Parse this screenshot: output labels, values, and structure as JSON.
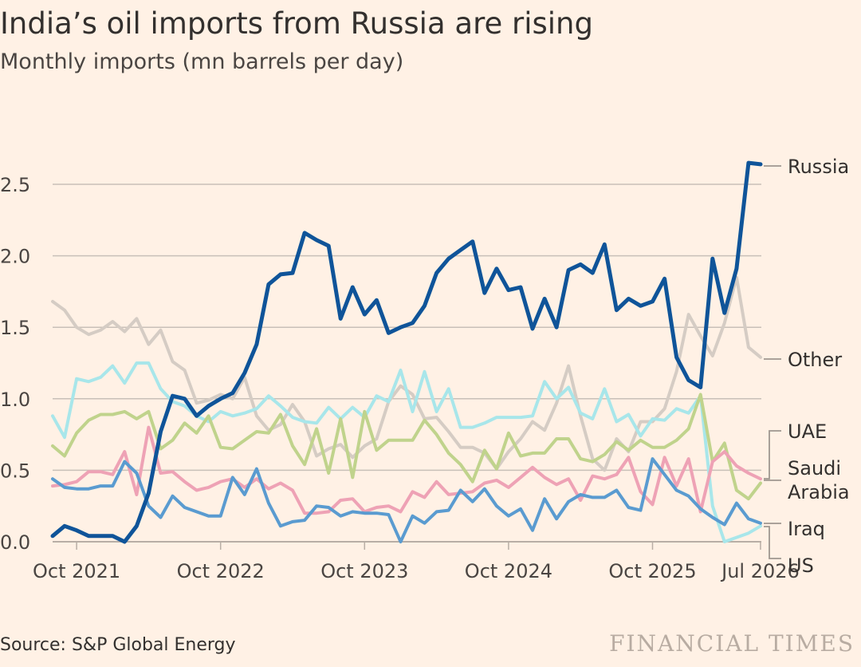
{
  "header": {
    "title": "India’s oil imports from Russia are rising",
    "subtitle": "Monthly imports (mn barrels per day)"
  },
  "footer": {
    "source": "Source: S&P Global Energy",
    "brand": "FINANCIAL TIMES"
  },
  "colors": {
    "background": "#fff1e5",
    "gridline": "#c8c0b8",
    "Russia": "#0f5499",
    "Other": "#d5ccc4",
    "UAE": "#c0d38c",
    "Saudi Arabia": "#eea2b5",
    "Iraq": "#5a9bd0",
    "US": "#a8e6ea"
  },
  "chart_data": {
    "type": "line",
    "title": "India’s oil imports from Russia are rising",
    "subtitle": "Monthly imports (mn barrels per day)",
    "ylim": [
      0,
      2.8
    ],
    "yticks": [
      0.0,
      0.5,
      1.0,
      1.5,
      2.0,
      2.5
    ],
    "ytick_labels": [
      "0.0",
      "0.5",
      "1.0",
      "1.5",
      "2.0",
      "2.5"
    ],
    "xticks": [
      {
        "label": "Oct 2021",
        "index": 2
      },
      {
        "label": "Oct 2022",
        "index": 14
      },
      {
        "label": "Oct 2023",
        "index": 26
      },
      {
        "label": "Oct 2024",
        "index": 38
      },
      {
        "label": "Oct 2025",
        "index": 50
      },
      {
        "label": "Jul 2026",
        "index": 59
      }
    ],
    "x": [
      "Aug 2021",
      "Sep 2021",
      "Oct 2021",
      "Nov 2021",
      "Dec 2021",
      "Jan 2022",
      "Feb 2022",
      "Mar 2022",
      "Apr 2022",
      "May 2022",
      "Jun 2022",
      "Jul 2022",
      "Aug 2022",
      "Sep 2022",
      "Oct 2022",
      "Nov 2022",
      "Dec 2022",
      "Jan 2023",
      "Feb 2023",
      "Mar 2023",
      "Apr 2023",
      "May 2023",
      "Jun 2023",
      "Jul 2023",
      "Aug 2023",
      "Sep 2023",
      "Oct 2023",
      "Nov 2023",
      "Dec 2023",
      "Jan 2024",
      "Feb 2024",
      "Mar 2024",
      "Apr 2024",
      "May 2024",
      "Jun 2024",
      "Jul 2024",
      "Aug 2024",
      "Sep 2024",
      "Oct 2024",
      "Nov 2024",
      "Dec 2024",
      "Jan 2025",
      "Feb 2025",
      "Mar 2025",
      "Apr 2025",
      "May 2025",
      "Jun 2025",
      "Jul 2025",
      "Aug 2025",
      "Sep 2025",
      "Oct 2025",
      "Nov 2025",
      "Dec 2025",
      "Jan 2026",
      "Feb 2026",
      "Mar 2026",
      "Apr 2026",
      "May 2026",
      "Jun 2026",
      "Jul 2026"
    ],
    "series": [
      {
        "name": "Other",
        "values": [
          1.68,
          1.62,
          1.5,
          1.45,
          1.48,
          1.54,
          1.47,
          1.56,
          1.38,
          1.48,
          1.26,
          1.2,
          0.97,
          0.99,
          1.03,
          1.0,
          1.15,
          0.88,
          0.78,
          0.82,
          0.96,
          0.84,
          0.6,
          0.65,
          0.68,
          0.59,
          0.67,
          0.72,
          0.98,
          1.09,
          1.03,
          0.86,
          0.87,
          0.77,
          0.66,
          0.66,
          0.62,
          0.51,
          0.63,
          0.72,
          0.84,
          0.78,
          0.97,
          1.23,
          0.88,
          0.58,
          0.5,
          0.72,
          0.63,
          0.84,
          0.84,
          0.93,
          1.19,
          1.59,
          1.44,
          1.3,
          1.53,
          1.85,
          1.36,
          1.29
        ]
      },
      {
        "name": "US",
        "values": [
          0.88,
          0.73,
          1.14,
          1.12,
          1.15,
          1.23,
          1.11,
          1.25,
          1.25,
          1.07,
          0.98,
          0.95,
          0.88,
          0.84,
          0.91,
          0.88,
          0.9,
          0.93,
          1.02,
          0.95,
          0.87,
          0.84,
          0.83,
          0.94,
          0.86,
          0.94,
          0.87,
          1.02,
          0.98,
          1.2,
          0.91,
          1.19,
          0.91,
          1.07,
          0.8,
          0.8,
          0.83,
          0.87,
          0.87,
          0.87,
          0.88,
          1.12,
          1.0,
          1.08,
          0.9,
          0.86,
          1.07,
          0.84,
          0.89,
          0.74,
          0.86,
          0.85,
          0.93,
          0.9,
          1.02,
          0.25,
          0.0,
          0.03,
          0.06,
          0.11
        ]
      },
      {
        "name": "UAE",
        "values": [
          0.67,
          0.6,
          0.76,
          0.85,
          0.89,
          0.89,
          0.91,
          0.86,
          0.91,
          0.65,
          0.71,
          0.83,
          0.76,
          0.88,
          0.66,
          0.65,
          0.71,
          0.77,
          0.76,
          0.89,
          0.67,
          0.54,
          0.79,
          0.48,
          0.86,
          0.45,
          0.91,
          0.64,
          0.71,
          0.71,
          0.71,
          0.85,
          0.75,
          0.62,
          0.54,
          0.42,
          0.64,
          0.51,
          0.76,
          0.6,
          0.62,
          0.62,
          0.72,
          0.72,
          0.58,
          0.56,
          0.61,
          0.7,
          0.64,
          0.71,
          0.66,
          0.66,
          0.71,
          0.79,
          1.03,
          0.56,
          0.69,
          0.36,
          0.3,
          0.41
        ]
      },
      {
        "name": "Saudi Arabia",
        "values": [
          0.39,
          0.4,
          0.42,
          0.49,
          0.49,
          0.47,
          0.63,
          0.33,
          0.8,
          0.48,
          0.49,
          0.42,
          0.36,
          0.38,
          0.42,
          0.44,
          0.38,
          0.44,
          0.37,
          0.41,
          0.36,
          0.2,
          0.2,
          0.21,
          0.29,
          0.3,
          0.21,
          0.24,
          0.25,
          0.21,
          0.35,
          0.31,
          0.42,
          0.33,
          0.34,
          0.35,
          0.41,
          0.43,
          0.38,
          0.45,
          0.52,
          0.45,
          0.4,
          0.44,
          0.29,
          0.46,
          0.44,
          0.47,
          0.59,
          0.35,
          0.26,
          0.59,
          0.39,
          0.58,
          0.21,
          0.56,
          0.63,
          0.53,
          0.48,
          0.44
        ]
      },
      {
        "name": "Iraq",
        "values": [
          0.44,
          0.38,
          0.37,
          0.37,
          0.39,
          0.39,
          0.56,
          0.48,
          0.25,
          0.17,
          0.32,
          0.24,
          0.21,
          0.18,
          0.18,
          0.45,
          0.33,
          0.51,
          0.27,
          0.11,
          0.14,
          0.15,
          0.25,
          0.24,
          0.18,
          0.21,
          0.2,
          0.2,
          0.19,
          0.0,
          0.18,
          0.13,
          0.21,
          0.22,
          0.36,
          0.28,
          0.37,
          0.25,
          0.18,
          0.23,
          0.08,
          0.3,
          0.16,
          0.28,
          0.33,
          0.31,
          0.31,
          0.36,
          0.24,
          0.22,
          0.58,
          0.47,
          0.36,
          0.32,
          0.23,
          0.17,
          0.12,
          0.27,
          0.16,
          0.13
        ]
      },
      {
        "name": "Russia",
        "values": [
          0.04,
          0.11,
          0.08,
          0.04,
          0.04,
          0.04,
          0.0,
          0.11,
          0.34,
          0.77,
          1.02,
          1.0,
          0.88,
          0.95,
          1.0,
          1.04,
          1.18,
          1.38,
          1.8,
          1.87,
          1.88,
          2.16,
          2.11,
          2.07,
          1.56,
          1.78,
          1.59,
          1.69,
          1.46,
          1.5,
          1.53,
          1.65,
          1.88,
          1.98,
          2.04,
          2.1,
          1.74,
          1.91,
          1.76,
          1.78,
          1.49,
          1.7,
          1.5,
          1.9,
          1.94,
          1.88,
          2.08,
          1.62,
          1.7,
          1.65,
          1.68,
          1.84,
          1.29,
          1.13,
          1.08,
          1.98,
          1.6,
          1.91,
          2.65,
          2.64
        ]
      }
    ],
    "legend": [
      {
        "series": "Russia",
        "label_lines": [
          "Russia"
        ]
      },
      {
        "series": "Other",
        "label_lines": [
          "Other"
        ]
      },
      {
        "series": "UAE",
        "label_lines": [
          "UAE"
        ]
      },
      {
        "series": "Saudi Arabia",
        "label_lines": [
          "Saudi",
          "Arabia"
        ]
      },
      {
        "series": "Iraq",
        "label_lines": [
          "Iraq"
        ]
      },
      {
        "series": "US",
        "label_lines": [
          "US"
        ]
      }
    ],
    "grid": true,
    "legend_placement": "right, inline labels"
  }
}
